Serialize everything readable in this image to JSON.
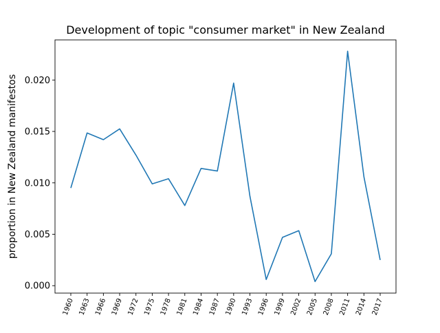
{
  "chart_data": {
    "type": "line",
    "title": "Development of topic \"consumer market\" in New Zealand",
    "xlabel": "",
    "ylabel": "proportion in New Zealand manifestos",
    "categories": [
      "1960",
      "1963",
      "1966",
      "1969",
      "1972",
      "1975",
      "1978",
      "1981",
      "1984",
      "1987",
      "1990",
      "1993",
      "1996",
      "1999",
      "2002",
      "2005",
      "2008",
      "2011",
      "2014",
      "2017"
    ],
    "series": [
      {
        "values": [
          0.0095,
          0.01485,
          0.0142,
          0.01525,
          0.0127,
          0.0099,
          0.0104,
          0.0078,
          0.0114,
          0.01115,
          0.0197,
          0.0087,
          0.0006,
          0.0047,
          0.00535,
          0.0004,
          0.0031,
          0.0228,
          0.0106,
          0.0025
        ],
        "color": "#1f77b4"
      }
    ],
    "yticks": [
      "0.000",
      "0.005",
      "0.010",
      "0.015",
      "0.020"
    ],
    "ytick_values": [
      0,
      0.005,
      0.01,
      0.015,
      0.02
    ],
    "ylim": [
      -0.00072,
      0.0239
    ],
    "grid": false,
    "legend": "none"
  }
}
